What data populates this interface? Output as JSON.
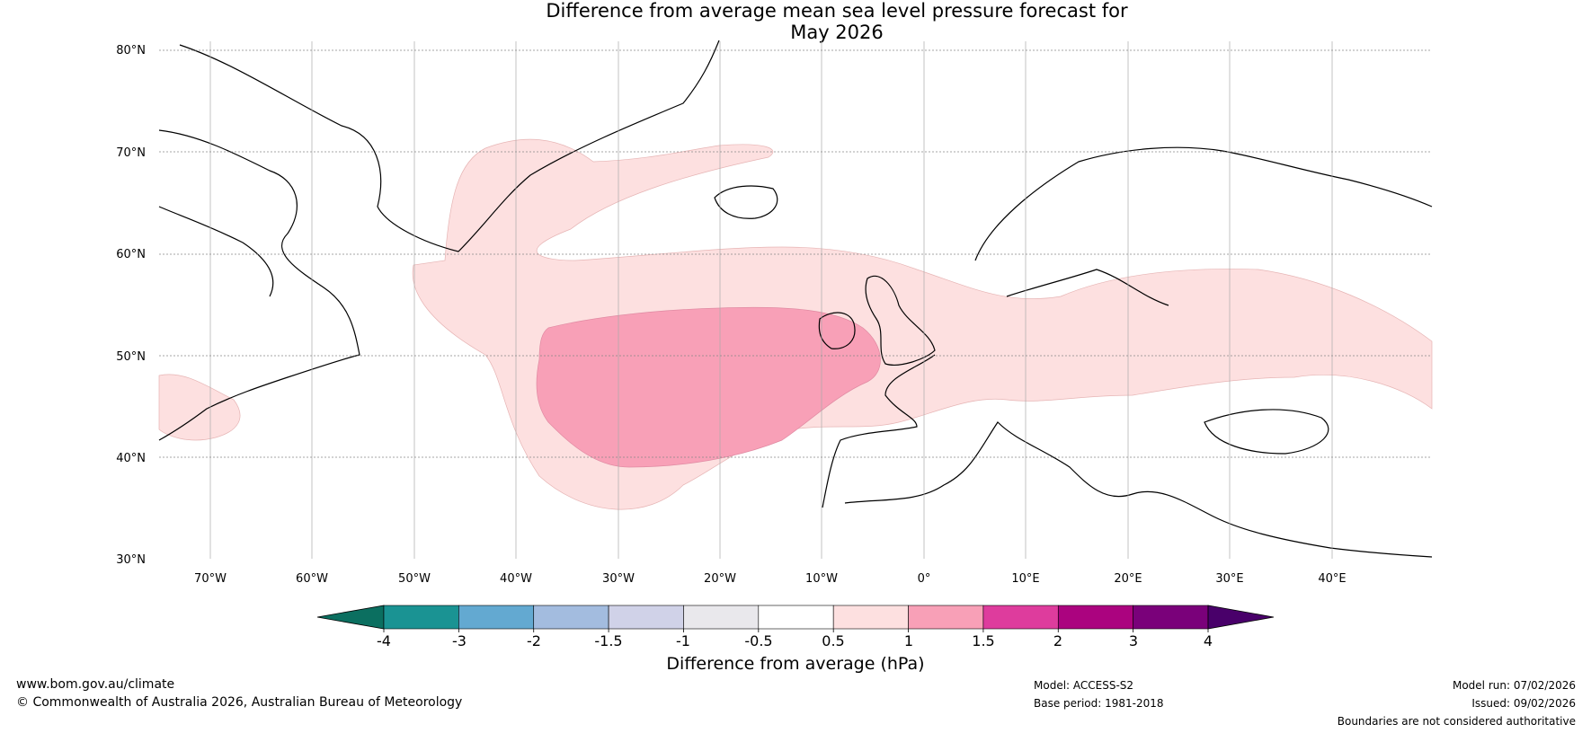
{
  "title": {
    "line1": "Difference from average mean sea level pressure forecast for",
    "line2": "May 2026"
  },
  "lat_labels": [
    "80°N",
    "70°N",
    "60°N",
    "50°N",
    "40°N",
    "30°N"
  ],
  "lon_labels": [
    "70°W",
    "60°W",
    "50°W",
    "40°W",
    "30°W",
    "20°W",
    "10°W",
    "0°",
    "10°E",
    "20°E",
    "30°E",
    "40°E"
  ],
  "colorbar": {
    "label": "Difference from average (hPa)",
    "ticks": [
      "-4",
      "-3",
      "-2",
      "-1.5",
      "-1",
      "-0.5",
      "0.5",
      "1",
      "1.5",
      "2",
      "3",
      "4"
    ],
    "colors": {
      "under": "#0b6f60",
      "bins": [
        "#1a9393",
        "#63a9d1",
        "#a3bcdf",
        "#d0d2e8",
        "#e9e8ec",
        "#ffffff",
        "#fde0e0",
        "#f8a0b7",
        "#de3c9d",
        "#ab037f",
        "#7a017a"
      ],
      "over": "#49006a"
    }
  },
  "field_colors": {
    "light": "#fde0e0",
    "medium": "#f8a0b7"
  },
  "footer": {
    "website": "www.bom.gov.au/climate",
    "copyright": "© Commonwealth of Australia 2026, Australian Bureau of Meteorology",
    "model": "Model: ACCESS-S2",
    "base_period": "Base period: 1981-2018",
    "model_run": "Model run: 07/02/2026",
    "issued": "Issued: 09/02/2026",
    "disclaimer": "Boundaries are not considered authoritative"
  }
}
